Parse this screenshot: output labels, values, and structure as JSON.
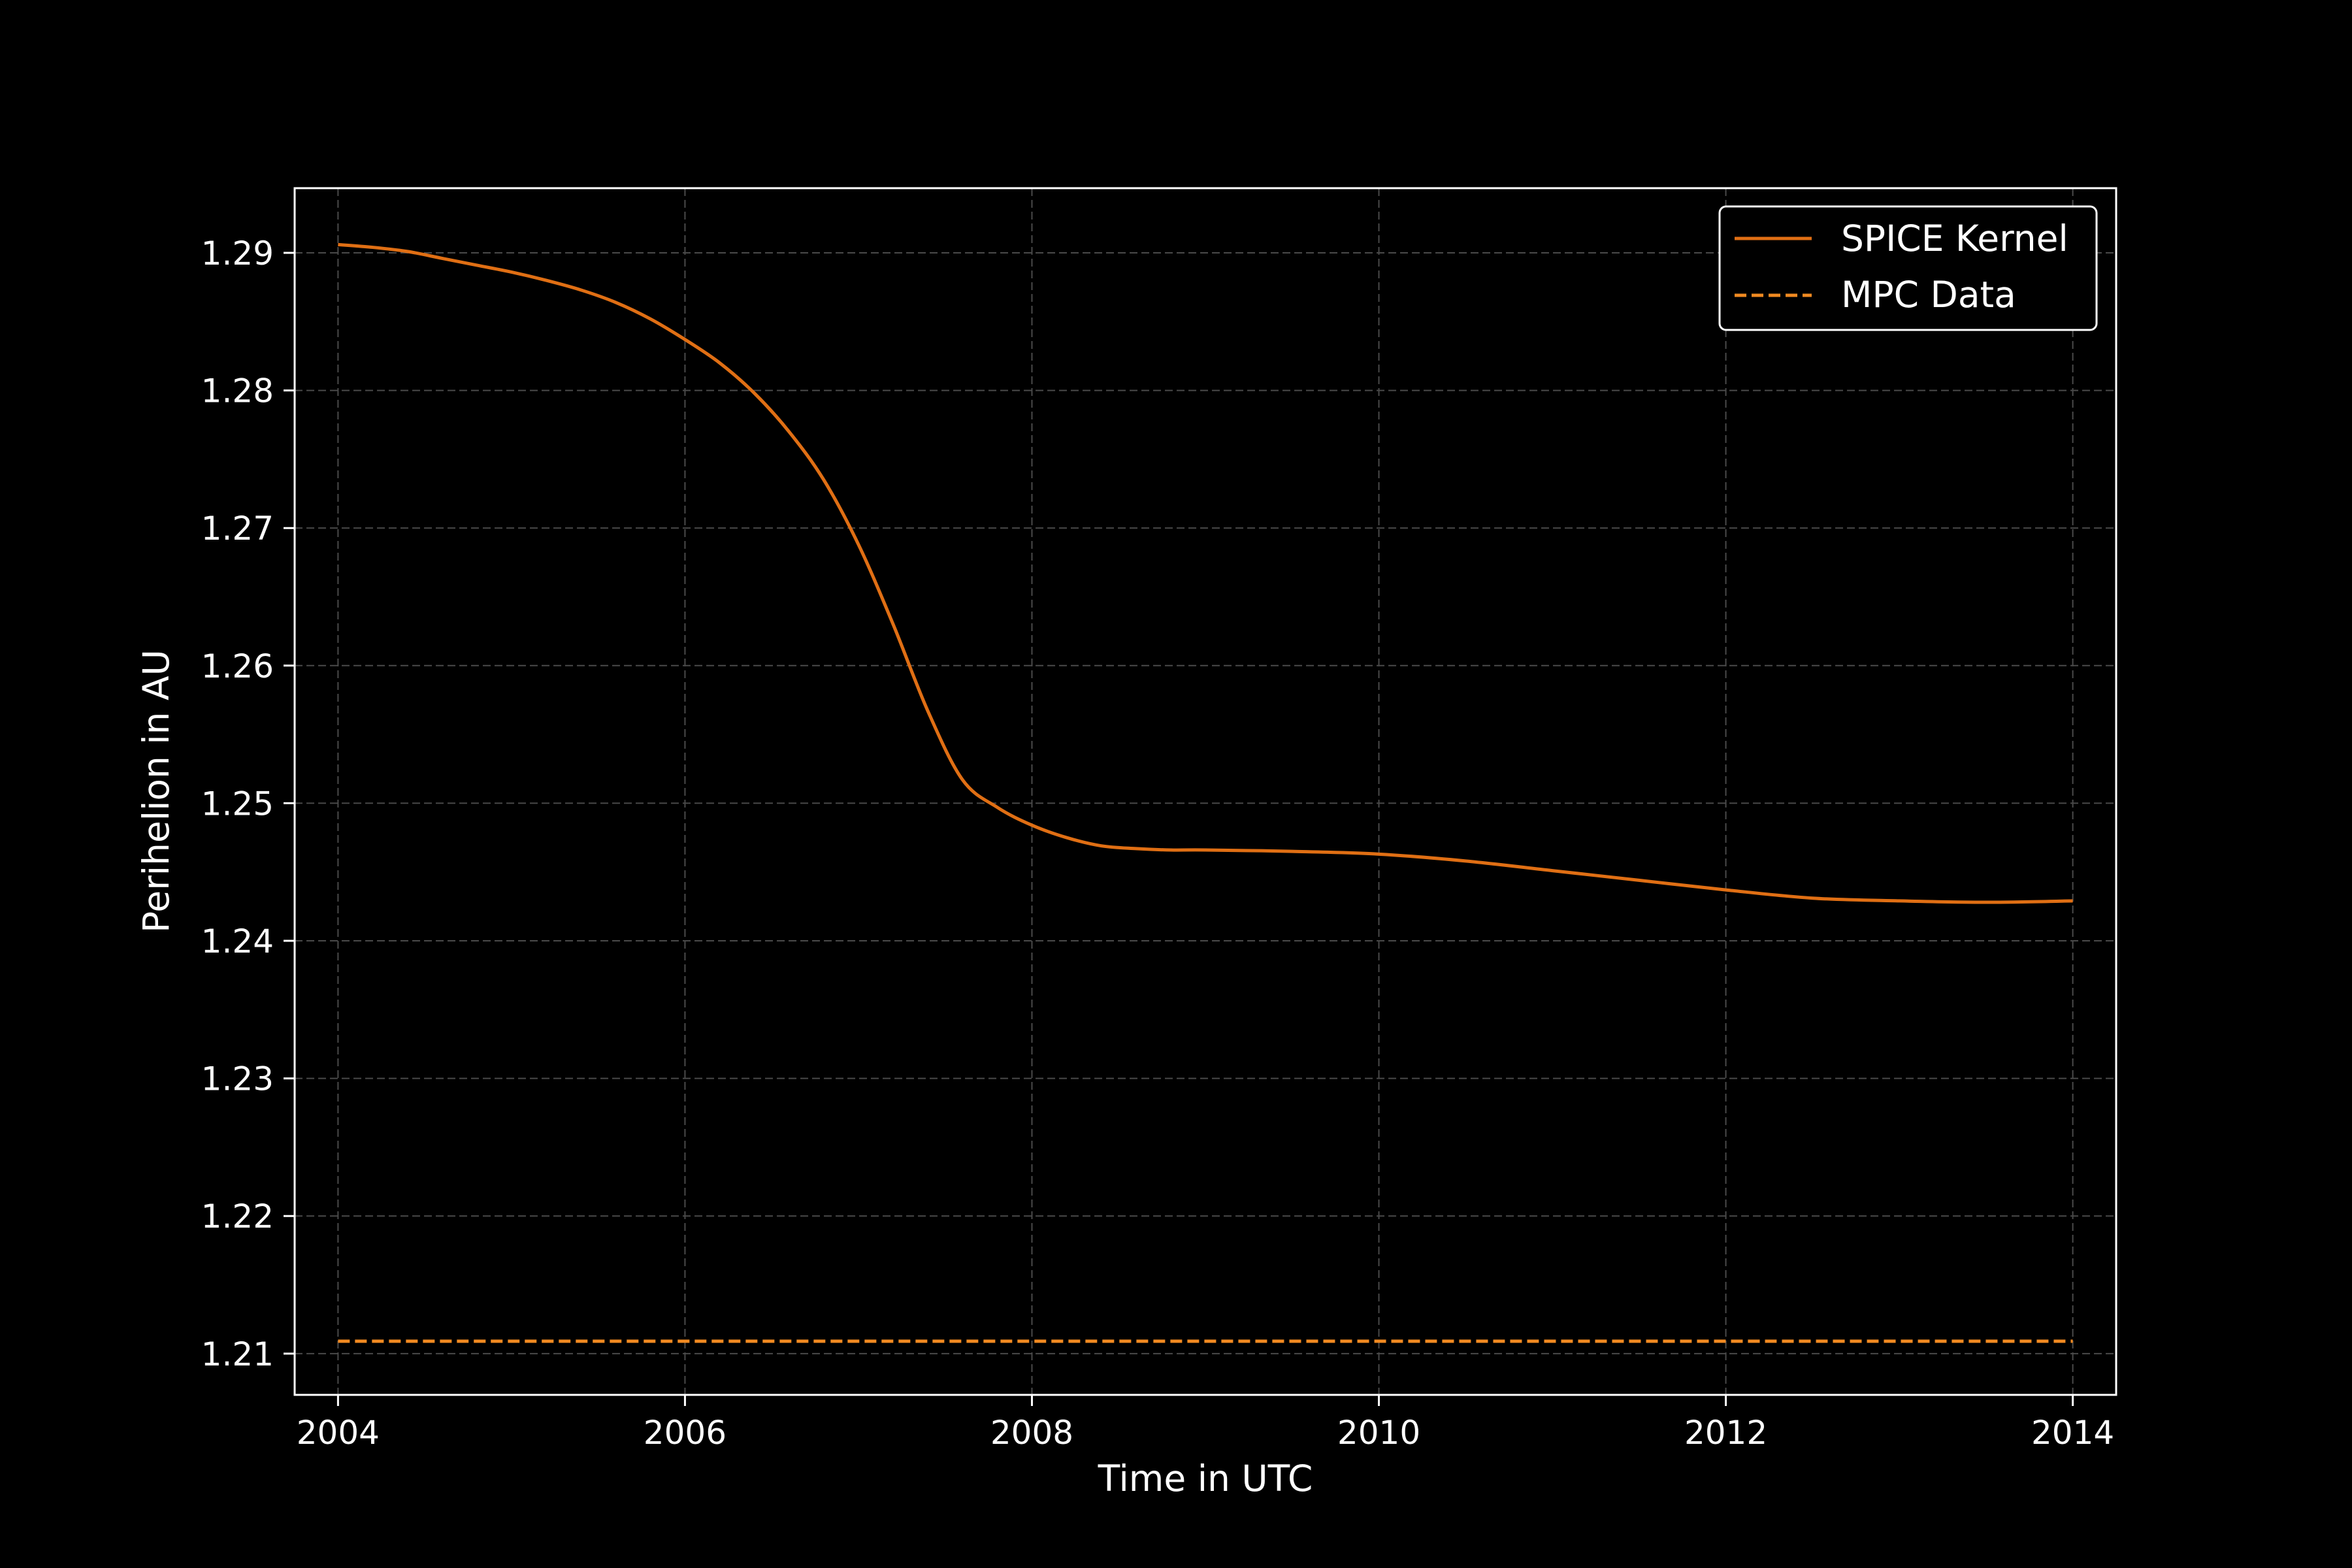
{
  "chart_data": {
    "type": "line",
    "xlabel": "Time in UTC",
    "ylabel": "Perihelion in AU",
    "xlim": [
      2003.75,
      2014.25
    ],
    "ylim": [
      1.207,
      1.2947
    ],
    "x_ticks": [
      2004,
      2006,
      2008,
      2010,
      2012,
      2014
    ],
    "x_tick_labels": [
      "2004",
      "2006",
      "2008",
      "2010",
      "2012",
      "2014"
    ],
    "y_ticks": [
      1.21,
      1.22,
      1.23,
      1.24,
      1.25,
      1.26,
      1.27,
      1.28,
      1.29
    ],
    "y_tick_labels": [
      "1.21",
      "1.22",
      "1.23",
      "1.24",
      "1.25",
      "1.26",
      "1.27",
      "1.28",
      "1.29"
    ],
    "grid": true,
    "legend_position": "top-right",
    "background": "#000000",
    "series": [
      {
        "name": "SPICE Kernel",
        "style": "solid",
        "color": "#e06f14",
        "x": [
          2004.0,
          2004.2,
          2004.4,
          2004.6,
          2004.8,
          2005.0,
          2005.2,
          2005.4,
          2005.6,
          2005.8,
          2006.0,
          2006.2,
          2006.4,
          2006.6,
          2006.8,
          2007.0,
          2007.2,
          2007.4,
          2007.6,
          2007.8,
          2008.0,
          2008.2,
          2008.4,
          2008.6,
          2008.8,
          2009.0,
          2009.5,
          2010.0,
          2010.5,
          2011.0,
          2011.5,
          2012.0,
          2012.5,
          2013.0,
          2013.5,
          2014.0
        ],
        "y": [
          1.2906,
          1.2904,
          1.2901,
          1.2896,
          1.2891,
          1.2886,
          1.288,
          1.2873,
          1.2864,
          1.2852,
          1.2837,
          1.282,
          1.2798,
          1.277,
          1.2735,
          1.2688,
          1.263,
          1.2567,
          1.2517,
          1.2497,
          1.2484,
          1.2475,
          1.2469,
          1.2467,
          1.2466,
          1.2466,
          1.2465,
          1.2463,
          1.2458,
          1.2451,
          1.2444,
          1.2437,
          1.2431,
          1.2429,
          1.2428,
          1.2429
        ]
      },
      {
        "name": "MPC Data",
        "style": "dashed",
        "color": "#f28a21",
        "x": [
          2004.0,
          2014.0
        ],
        "y": [
          1.2109,
          1.2109
        ]
      }
    ]
  }
}
